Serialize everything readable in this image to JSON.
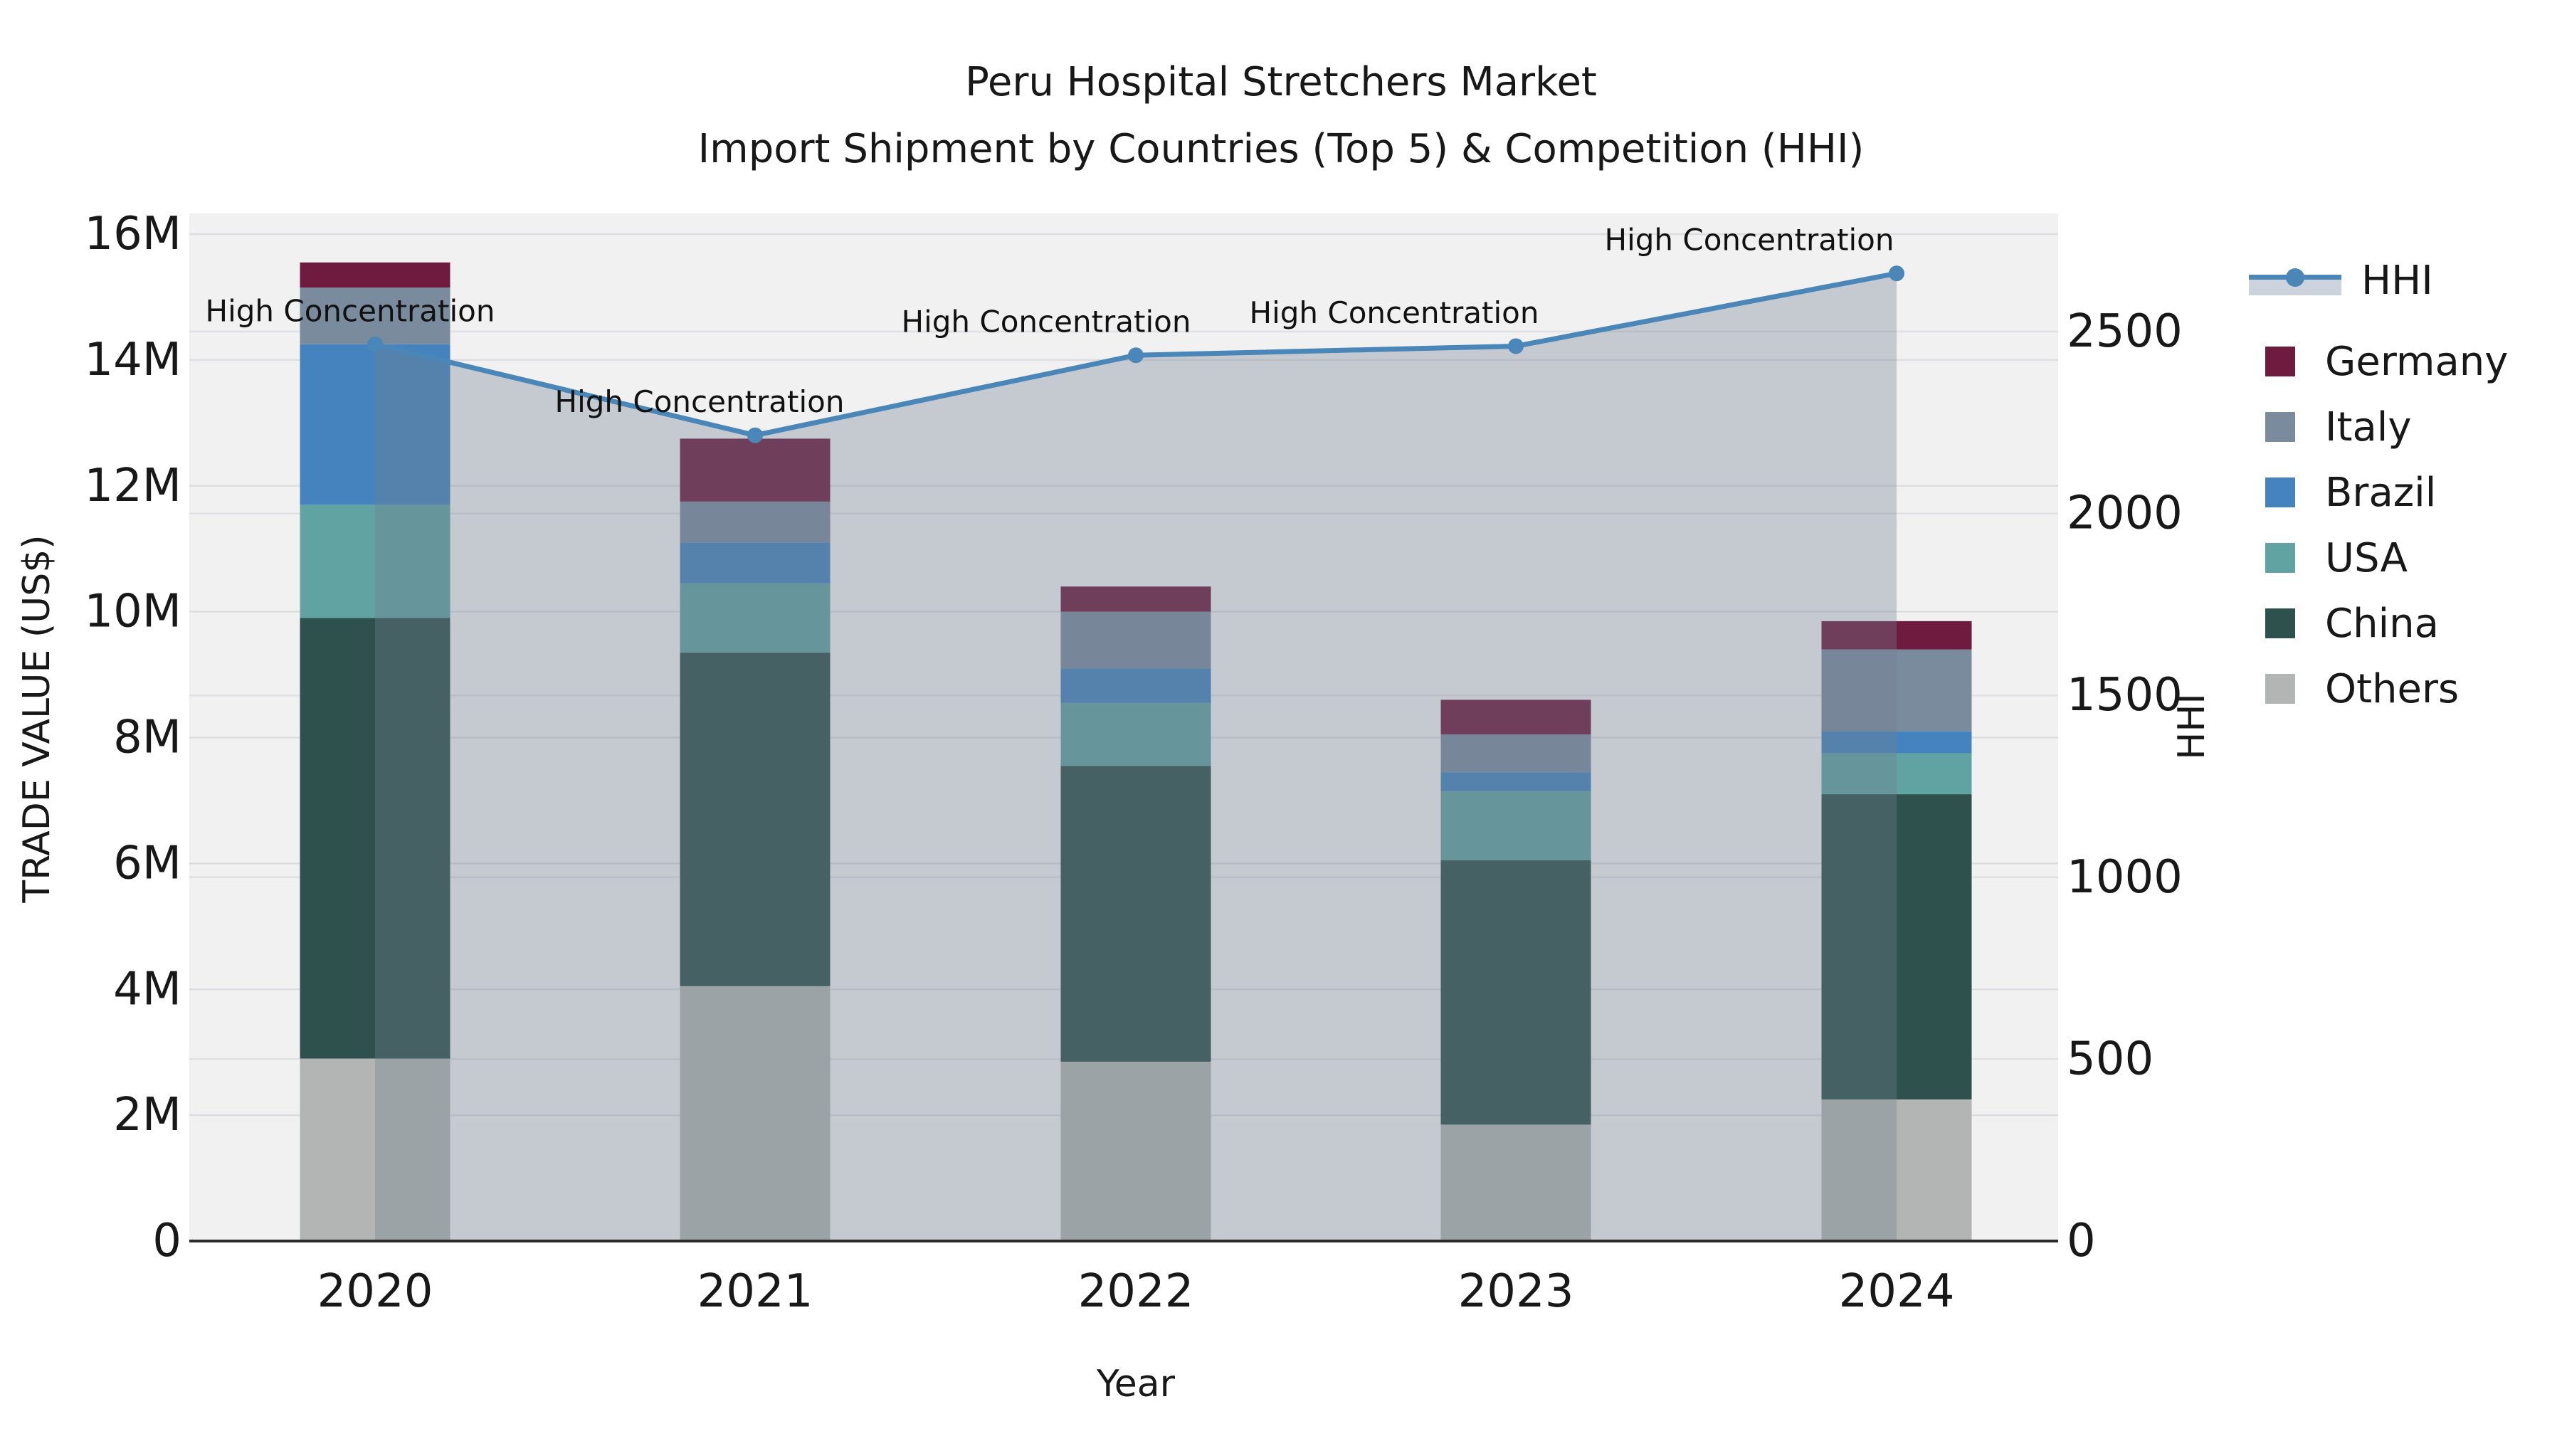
{
  "title": {
    "line1": "Peru Hospital Stretchers Market",
    "line2": "Import Shipment by Countries (Top 5) & Competition (HHI)"
  },
  "axes": {
    "x": {
      "title": "Year"
    },
    "y_left": {
      "title": "TRADE VALUE (US$)",
      "tick_labels": [
        "0",
        "2M",
        "4M",
        "6M",
        "8M",
        "10M",
        "12M",
        "14M",
        "16M"
      ]
    },
    "y_right": {
      "title": "HHI",
      "tick_labels": [
        "0",
        "500",
        "1000",
        "1500",
        "2000",
        "2500"
      ]
    }
  },
  "legend": {
    "items": [
      {
        "label": "HHI",
        "type": "line",
        "color": "#4a86b8"
      },
      {
        "label": "Germany",
        "type": "swatch",
        "color": "#6f1b40"
      },
      {
        "label": "Italy",
        "type": "swatch",
        "color": "#7b8b9e"
      },
      {
        "label": "Brazil",
        "type": "swatch",
        "color": "#4583be"
      },
      {
        "label": "USA",
        "type": "swatch",
        "color": "#61a2a2"
      },
      {
        "label": "China",
        "type": "swatch",
        "color": "#2f514e"
      },
      {
        "label": "Others",
        "type": "swatch",
        "color": "#b3b5b4"
      }
    ]
  },
  "chart_data": {
    "type": "bar",
    "subtype": "stacked-bar-with-line",
    "title": "Peru Hospital Stretchers Market — Import Shipment by Countries (Top 5) & Competition (HHI)",
    "categories": [
      "2020",
      "2021",
      "2022",
      "2023",
      "2024"
    ],
    "bar_unit": "million US$",
    "series": [
      {
        "name": "Others",
        "color": "#b3b5b4",
        "values": [
          2.9,
          4.05,
          2.85,
          1.85,
          2.25
        ]
      },
      {
        "name": "China",
        "color": "#2f514e",
        "values": [
          7.0,
          5.3,
          4.7,
          4.2,
          4.85
        ]
      },
      {
        "name": "USA",
        "color": "#61a2a2",
        "values": [
          1.8,
          1.1,
          1.0,
          1.1,
          0.65
        ]
      },
      {
        "name": "Brazil",
        "color": "#4583be",
        "values": [
          2.55,
          0.65,
          0.55,
          0.3,
          0.35
        ]
      },
      {
        "name": "Italy",
        "color": "#7b8b9e",
        "values": [
          0.9,
          0.65,
          0.9,
          0.6,
          1.3
        ]
      },
      {
        "name": "Germany",
        "color": "#6f1b40",
        "values": [
          0.4,
          1.0,
          0.4,
          0.55,
          0.45
        ]
      }
    ],
    "bar_totals": [
      15.55,
      12.75,
      10.4,
      8.6,
      9.85
    ],
    "line_series": {
      "name": "HHI",
      "color": "#4a86b8",
      "area_fill": "rgba(112,128,144,0.35)",
      "values": [
        2465,
        2215,
        2435,
        2460,
        2660
      ],
      "axis": "right"
    },
    "annotations": {
      "label": "High Concentration",
      "per_point": true,
      "x_offsets": [
        -35,
        -78,
        -126,
        -171,
        -207
      ],
      "y_offset": -47
    },
    "xlabel": "Year",
    "ylabel": "TRADE VALUE (US$)",
    "y2label": "HHI",
    "ylim_millions": [
      0,
      16
    ],
    "y_tick_step_millions": 2,
    "y2_ticks": [
      0,
      500,
      1000,
      1500,
      2000,
      2500
    ],
    "grid": true,
    "legend_position": "right",
    "plot_bg": "#f1f1f2",
    "grid_color": "#dcdde0",
    "axis_line_color": "#2b2b2b",
    "text_color": "#181818"
  }
}
